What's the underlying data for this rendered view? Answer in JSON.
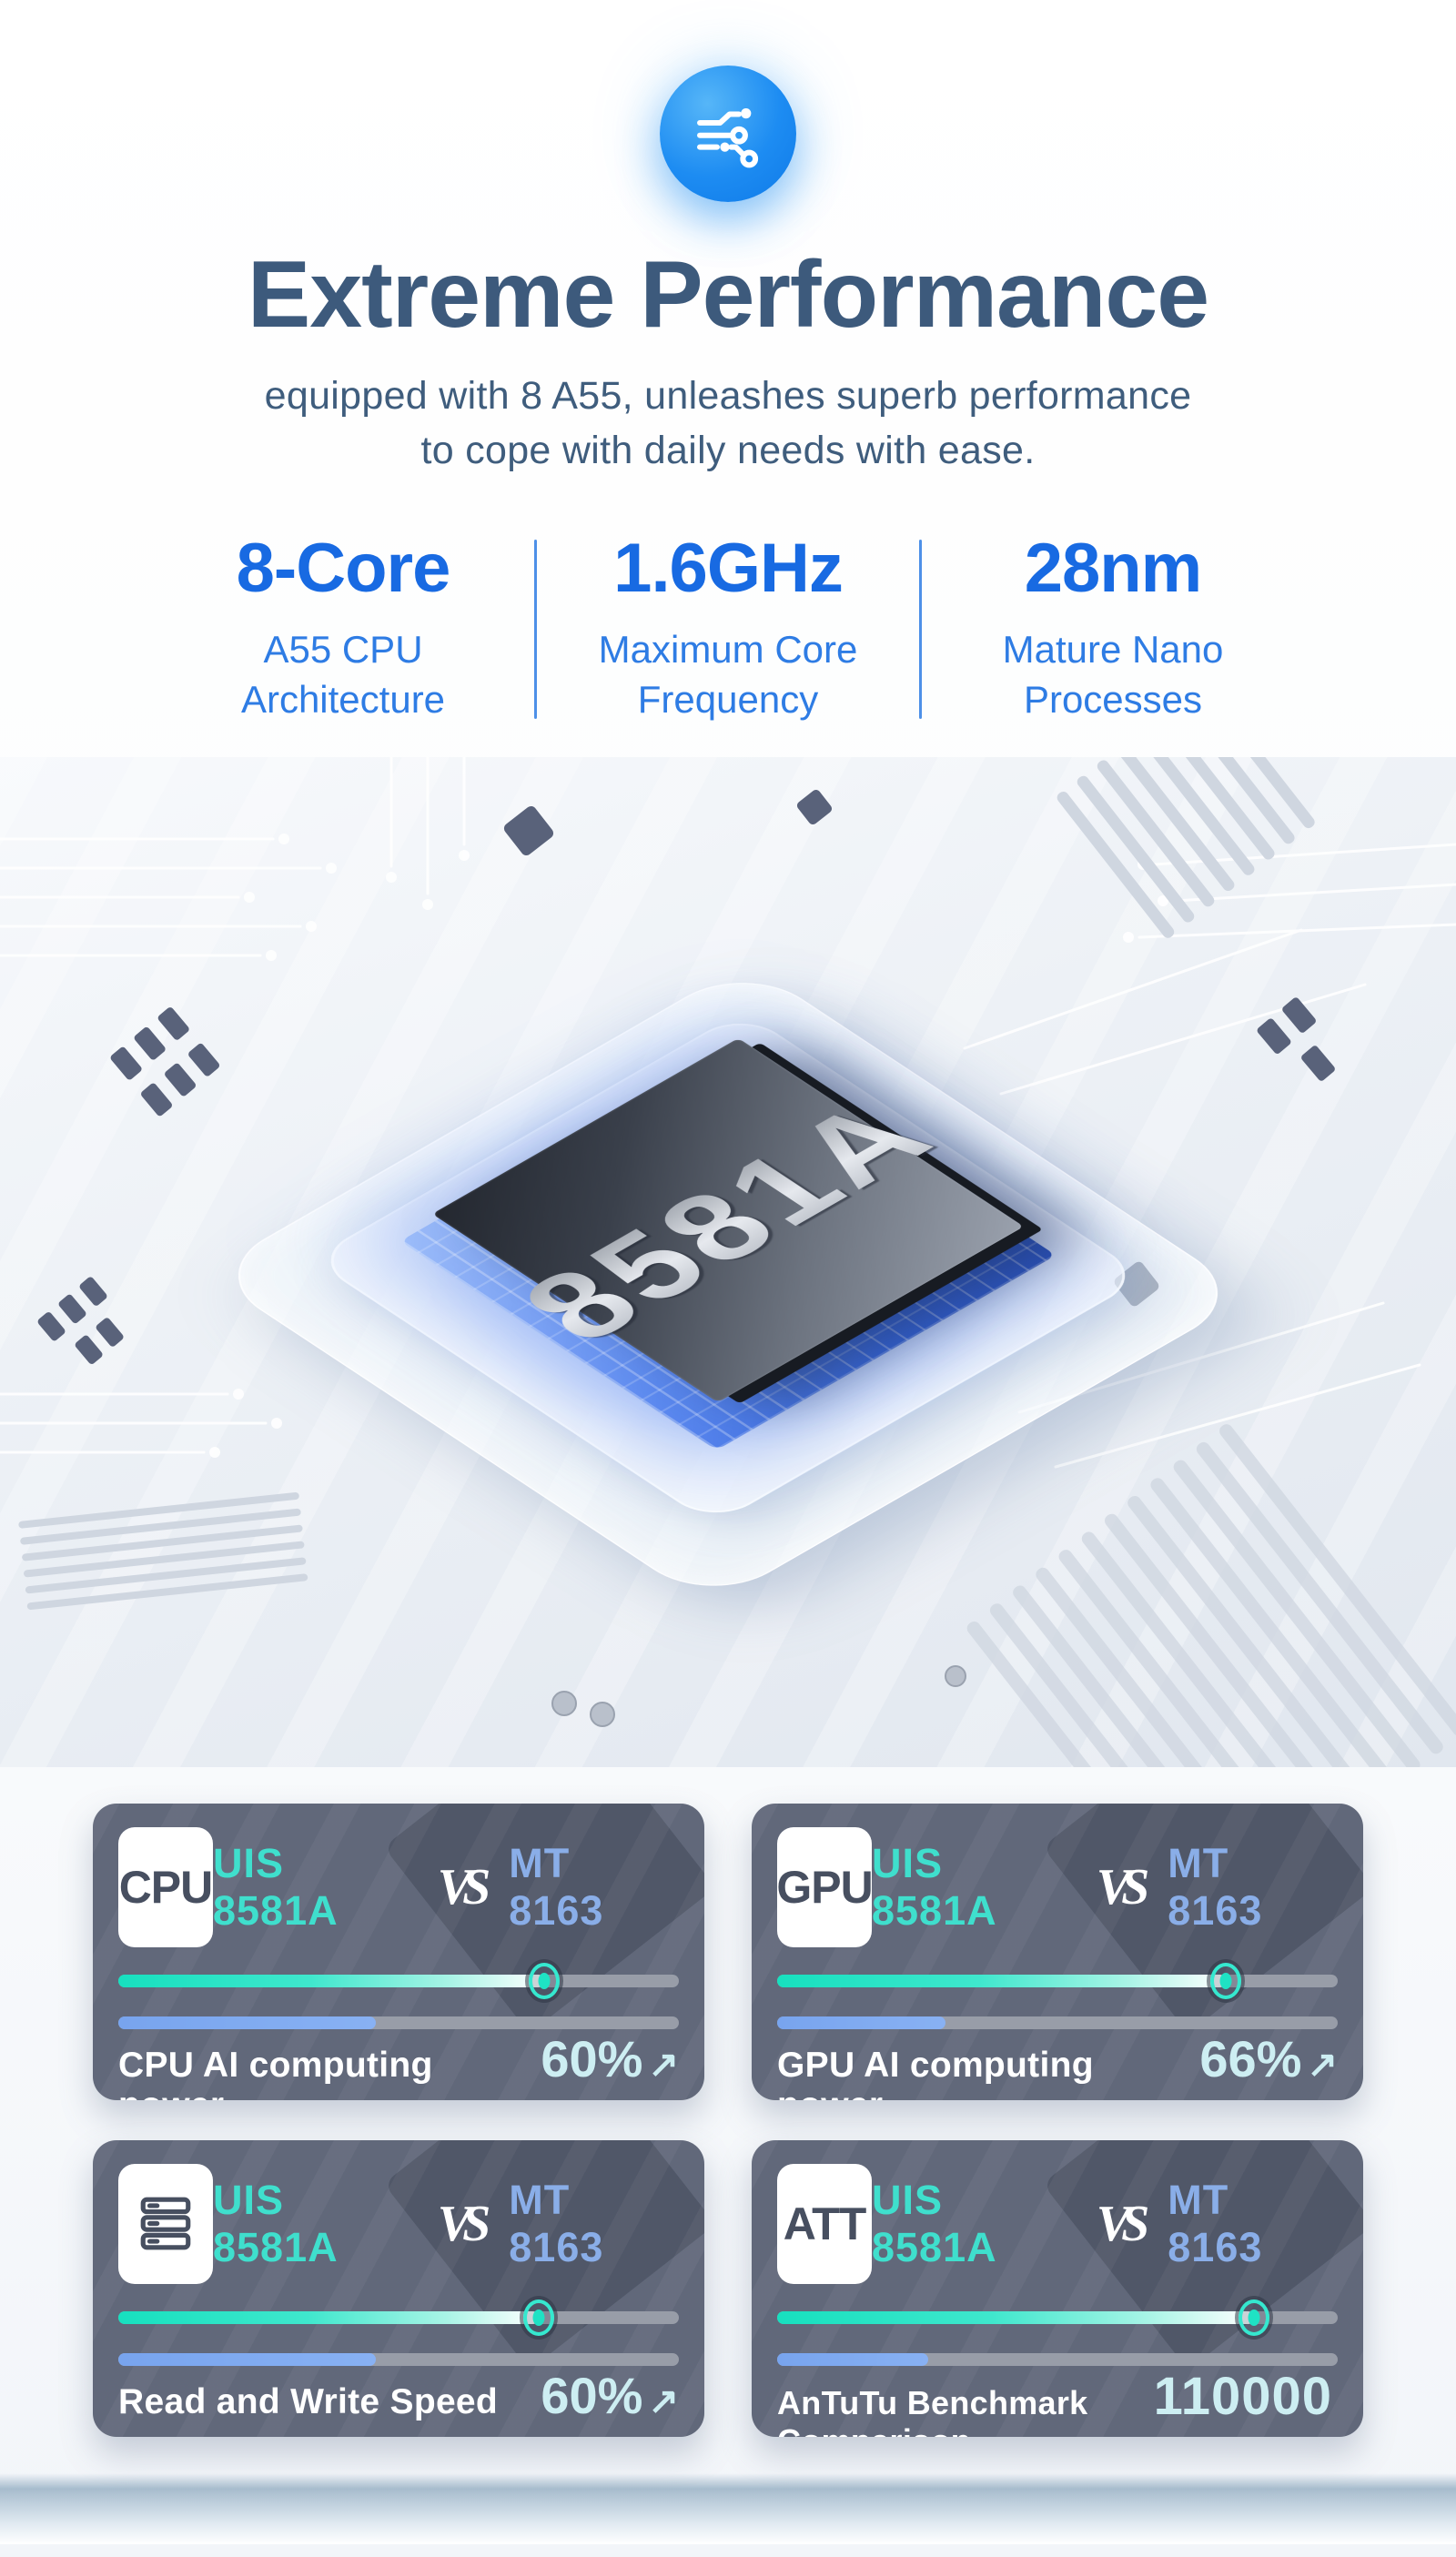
{
  "header": {
    "icon": "circuit-icon",
    "title": "Extreme Performance",
    "subtitle_line1": "equipped with 8 A55, unleashes superb performance",
    "subtitle_line2": "to cope with daily needs with ease."
  },
  "specs": {
    "items": [
      {
        "value": "8-Core",
        "label_line1": "A55 CPU",
        "label_line2": "Architecture"
      },
      {
        "value": "1.6GHz",
        "label_line1": "Maximum Core",
        "label_line2": "Frequency"
      },
      {
        "value": "28nm",
        "label_line1": "Mature Nano",
        "label_line2": "Processes"
      }
    ]
  },
  "chip_render": {
    "label": "8581A"
  },
  "comparison": {
    "left_chip": "UIS 8581A",
    "vs_mark": "VS",
    "right_chip": "MT 8163",
    "left_chip_color": "#3fdfcd",
    "right_chip_color": "#8aaee8",
    "cards": [
      {
        "badge": "CPU",
        "metric": "CPU AI computing power",
        "value": "60%",
        "arrow": "↗",
        "bar_top_pct": 76,
        "bar_bottom_pct": 46
      },
      {
        "badge": "GPU",
        "metric": "GPU AI computing power",
        "value": "66%",
        "arrow": "↗",
        "bar_top_pct": 80,
        "bar_bottom_pct": 30
      },
      {
        "badge_icon": "storage-icon",
        "metric": "Read and Write Speed",
        "value": "60%",
        "arrow": "↗",
        "bar_top_pct": 75,
        "bar_bottom_pct": 46
      },
      {
        "badge": "ATT",
        "metric": "AnTuTu Benchmark Comparison",
        "value": "110000",
        "arrow": "",
        "bar_top_pct": 85,
        "bar_bottom_pct": 27
      }
    ]
  },
  "colors": {
    "title": "#3d5a7c",
    "spec_value_blue": "#186ae2",
    "spec_label_blue": "#2e7ce4",
    "icon_circle_blue": "#1d8cf2",
    "card_background": "#61687a",
    "teal_bar": "#1fe2c4",
    "blue_bar": "#78a4ee",
    "value_text": "#cdeef2"
  }
}
